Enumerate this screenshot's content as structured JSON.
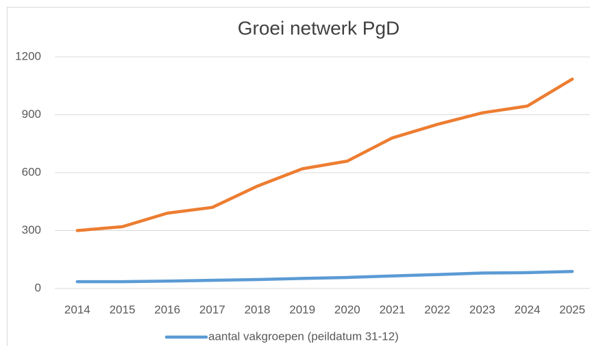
{
  "chart_data": {
    "type": "line",
    "title": "Groei netwerk PgD",
    "categories": [
      "2014",
      "2015",
      "2016",
      "2017",
      "2018",
      "2019",
      "2020",
      "2021",
      "2022",
      "2023",
      "2024",
      "2025"
    ],
    "series": [
      {
        "name": "aantal vakgroepen (peildatum 31-12)",
        "color": "#5b9bd5",
        "values": [
          35,
          35,
          38,
          42,
          46,
          52,
          57,
          65,
          72,
          80,
          82,
          88
        ]
      },
      {
        "color": "#ed7d31",
        "values": [
          300,
          320,
          390,
          420,
          530,
          620,
          660,
          780,
          850,
          910,
          945,
          1085
        ]
      }
    ],
    "ylim": [
      0,
      1200
    ],
    "yticks": [
      0,
      300,
      600,
      900,
      1200
    ],
    "grid": true,
    "legend": "bottom"
  }
}
